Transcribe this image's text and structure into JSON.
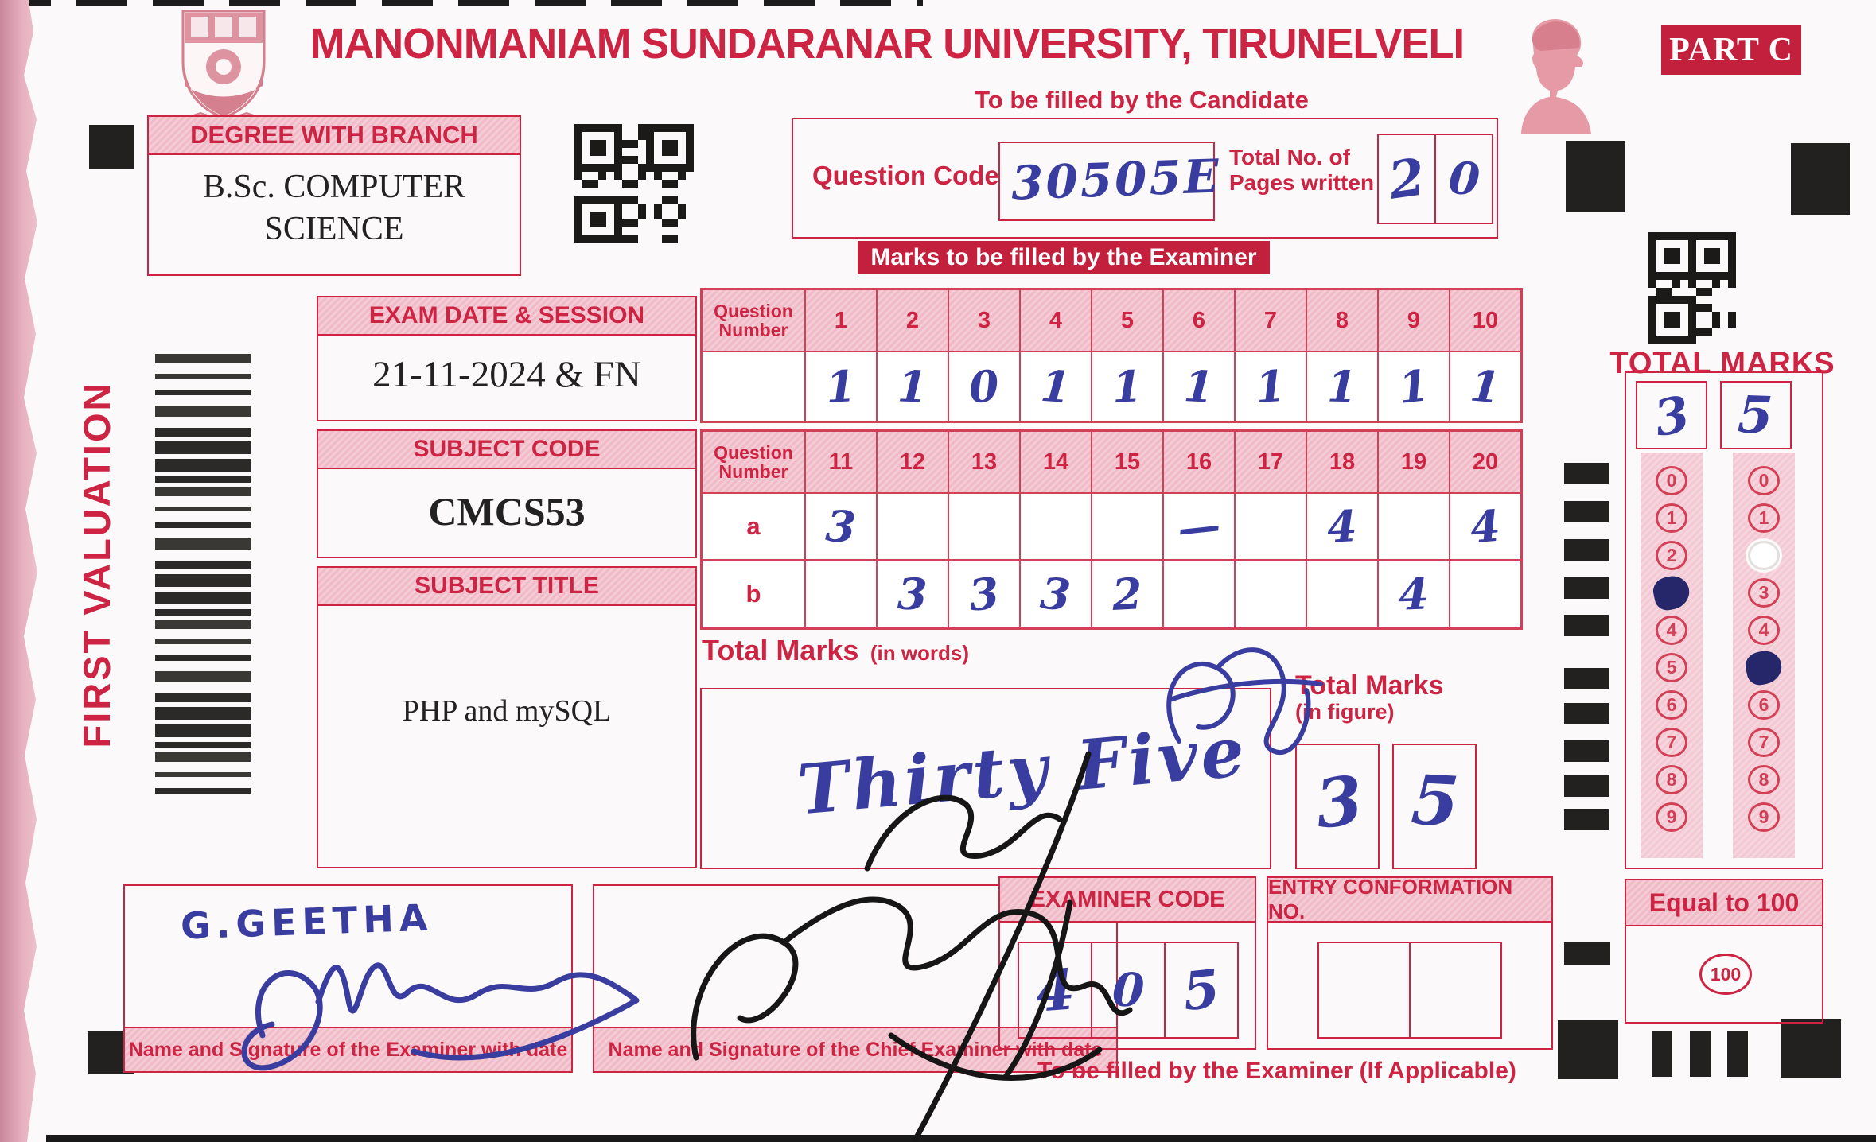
{
  "header": {
    "university": "MANONMANIAM SUNDARANAR UNIVERSITY, TIRUNELVELI",
    "part": "PART C"
  },
  "candidate": {
    "section_title": "To be filled by the Candidate",
    "question_code_label": "Question Code",
    "question_code_value": "30505E",
    "pages_label_line1": "Total No. of",
    "pages_label_line2": "Pages written",
    "pages_digits": [
      "2",
      "0"
    ]
  },
  "degree": {
    "label": "DEGREE WITH BRANCH",
    "value_line1": "B.Sc. COMPUTER",
    "value_line2": "SCIENCE"
  },
  "exam": {
    "label": "EXAM DATE & SESSION",
    "value": "21-11-2024 & FN"
  },
  "subject_code": {
    "label": "SUBJECT CODE",
    "value": "CMCS53"
  },
  "subject_title": {
    "label": "SUBJECT TITLE",
    "value": "PHP and mySQL"
  },
  "side_label": "FIRST VALUATION",
  "examiner_banner": "Marks to be filled by the Examiner",
  "marks_table_1": {
    "corner_label": "Question Number",
    "numbers": [
      "1",
      "2",
      "3",
      "4",
      "5",
      "6",
      "7",
      "8",
      "9",
      "10"
    ],
    "marks": [
      "1",
      "1",
      "0",
      "1",
      "1",
      "1",
      "1",
      "1",
      "1",
      "1"
    ]
  },
  "marks_table_2": {
    "corner_label": "Question Number",
    "numbers": [
      "11",
      "12",
      "13",
      "14",
      "15",
      "16",
      "17",
      "18",
      "19",
      "20"
    ],
    "row_a_label": "a",
    "row_a": [
      "3",
      "",
      "",
      "",
      "",
      "—",
      "",
      "4",
      "",
      "4"
    ],
    "row_b_label": "b",
    "row_b": [
      "",
      "3",
      "3",
      "3",
      "2",
      "",
      "",
      "",
      "4",
      ""
    ]
  },
  "total_words": {
    "label": "Total Marks",
    "sublabel": "(in words)",
    "value": "Thirty Five"
  },
  "total_figure": {
    "label": "Total Marks",
    "sublabel": "(in figure)",
    "digits": [
      "3",
      "5"
    ]
  },
  "total_marks_panel": {
    "title": "TOTAL MARKS",
    "digit_boxes": [
      "3",
      "5"
    ],
    "bubble_values": [
      "0",
      "1",
      "2",
      "3",
      "4",
      "5",
      "6",
      "7",
      "8",
      "9"
    ],
    "left_filled_index": 3,
    "right_filled_index": 5,
    "right_whiteout_index": 2
  },
  "equal_100": {
    "label": "Equal to 100",
    "bubble": "100"
  },
  "examiner_code": {
    "label": "EXAMINER CODE",
    "digits": [
      "4",
      "0",
      "5"
    ]
  },
  "entry_confirmation": {
    "label": "ENTRY CONFORMATION NO."
  },
  "signatures": {
    "examiner_name": "G.GEETHA",
    "examiner_caption": "Name and Signature of the Examiner with date",
    "chief_caption": "Name and Signature of the Chief Examiner with date"
  },
  "footer_note": "To be filled by the Examiner (If Applicable)",
  "colors": {
    "print_red": "#ce2443",
    "banner_red": "#c3203d",
    "band_pink": "#f4ccd6",
    "ink_blue": "#3a3da0",
    "ink_black": "#1c1c1c"
  }
}
